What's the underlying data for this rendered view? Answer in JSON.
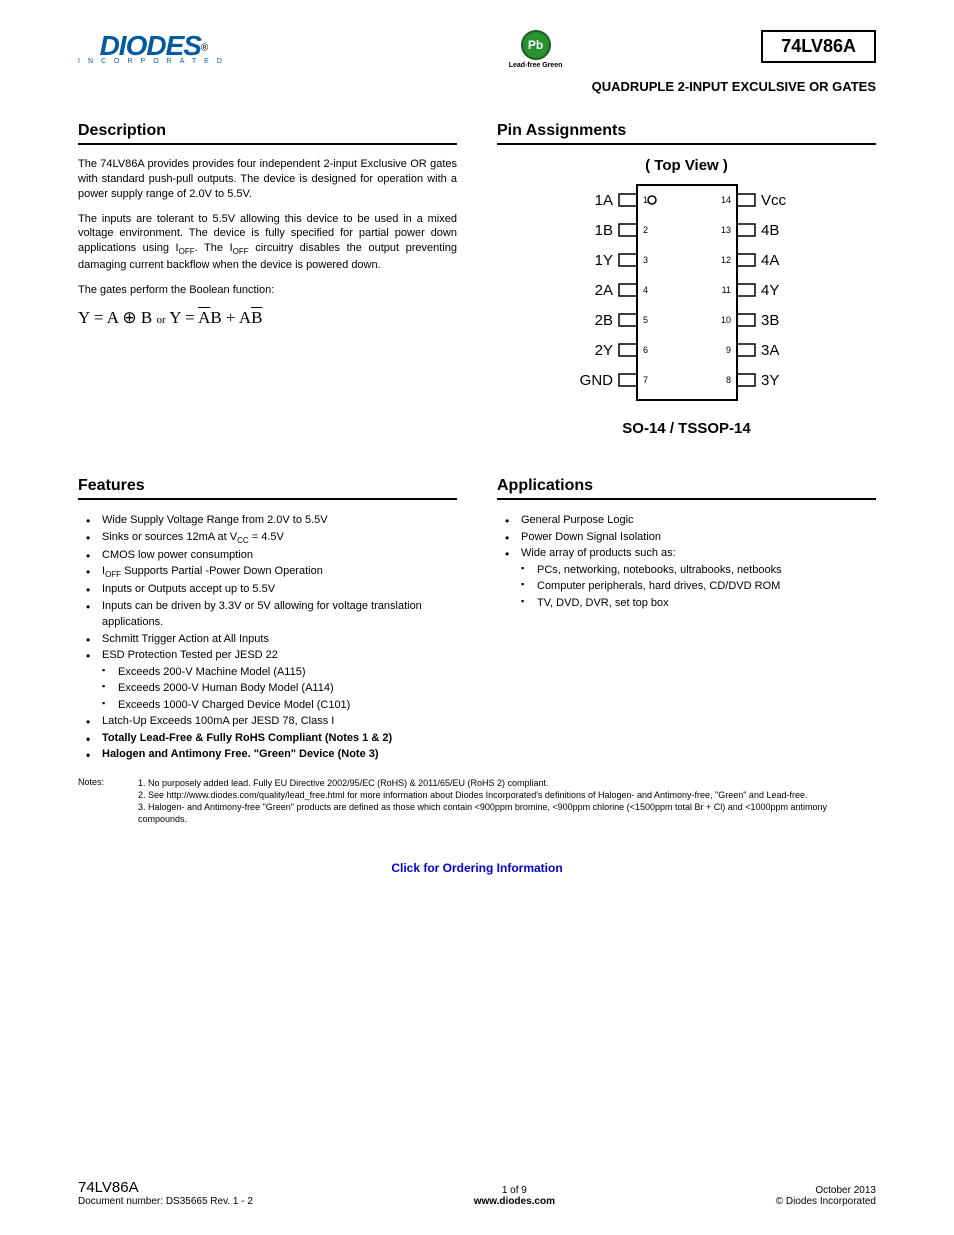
{
  "header": {
    "logo_main": "DIODES",
    "logo_reg": "®",
    "logo_sub": "INCORPORATED",
    "eco_symbol": "Pb",
    "eco_label": "Lead-free Green",
    "part_number": "74LV86A",
    "subtitle": "QUADRUPLE 2-INPUT EXCULSIVE OR GATES"
  },
  "colors": {
    "brand_blue": "#005a9e",
    "green_badge": "#2a9030",
    "link_blue": "#0000dd",
    "text": "#000000",
    "bg": "#ffffff"
  },
  "description": {
    "title": "Description",
    "para1": "The 74LV86A provides provides four independent 2-input  Exclusive OR  gates with standard push-pull outputs.  The device is designed for operation with a power supply range of 2.0V to 5.5V.",
    "para2_a": "The inputs are tolerant to 5.5V allowing this device to be used in a mixed voltage environment.  The device is fully specified for partial power down applications using I",
    "para2_off1": "OFF",
    "para2_b": ".  The I",
    "para2_off2": "OFF",
    "para2_c": " circuitry disables the output preventing damaging current backflow when the device is powered down.",
    "para3": "The gates perform the Boolean function:",
    "formula_y": "Y = A ⊕ B",
    "formula_or": "or",
    "formula_y2a": "Y = ",
    "formula_abar": "A",
    "formula_b": "B + A",
    "formula_bbar": "B"
  },
  "pin": {
    "title": "Pin Assignments",
    "top_view": "( Top View )",
    "caption": "SO-14 / TSSOP-14",
    "left_labels": [
      "1A",
      "1B",
      "1Y",
      "2A",
      "2B",
      "2Y",
      "GND"
    ],
    "left_nums": [
      "1",
      "2",
      "3",
      "4",
      "5",
      "6",
      "7"
    ],
    "right_labels": [
      "Vcc",
      "4B",
      "4A",
      "4Y",
      "3B",
      "3A",
      "3Y"
    ],
    "right_nums": [
      "14",
      "13",
      "12",
      "11",
      "10",
      "9",
      "8"
    ]
  },
  "features": {
    "title": "Features",
    "items": [
      {
        "t": "Wide Supply Voltage Range from 2.0V to 5.5V"
      },
      {
        "t": "Sinks or sources 12mA at V",
        "sub": "CC",
        "t2": " = 4.5V"
      },
      {
        "t": "CMOS low power consumption"
      },
      {
        "t": "I",
        "sub": "OFF",
        "t2": " Supports Partial -Power Down Operation"
      },
      {
        "t": "Inputs or Outputs accept up to 5.5V"
      },
      {
        "t": "Inputs can be driven by 3.3V or 5V allowing for voltage translation applications."
      },
      {
        "t": "Schmitt Trigger Action at All Inputs"
      },
      {
        "t": "ESD Protection Tested per JESD 22",
        "sub_items": [
          "Exceeds 200-V Machine Model (A115)",
          "Exceeds 2000-V Human Body Model (A114)",
          "Exceeds 1000-V Charged Device Model (C101)"
        ]
      },
      {
        "t": "Latch-Up Exceeds 100mA per JESD 78, Class I"
      },
      {
        "t": "Totally Lead-Free & Fully RoHS Compliant (Notes 1 & 2)",
        "bold": true
      },
      {
        "t": "Halogen and Antimony Free. \"Green\" Device (Note 3)",
        "bold": true
      }
    ]
  },
  "applications": {
    "title": "Applications",
    "items": [
      {
        "t": "General Purpose Logic"
      },
      {
        "t": "Power Down Signal Isolation"
      },
      {
        "t": "Wide array of products such as:",
        "sub_items": [
          "PCs, networking, notebooks, ultrabooks, netbooks",
          "Computer peripherals, hard drives, CD/DVD ROM",
          "TV, DVD, DVR, set top box"
        ]
      }
    ]
  },
  "notes": {
    "label": "Notes:",
    "items": [
      "1. No purposely added lead. Fully EU Directive 2002/95/EC (RoHS) & 2011/65/EU (RoHS 2) compliant.",
      "2. See http://www.diodes.com/quality/lead_free.html for more information about Diodes Incorporated's definitions of Halogen- and Antimony-free, \"Green\" and Lead-free.",
      "3. Halogen- and Antimony-free \"Green\" products are defined as those which contain <900ppm bromine, <900ppm chlorine (<1500ppm total Br + Cl) and <1000ppm antimony compounds."
    ]
  },
  "ordering_link": "Click for Ordering Information",
  "footer": {
    "part": "74LV86A",
    "docnum": "Document number: DS35665  Rev. 1 - 2",
    "page": "1 of 9",
    "url": "www.diodes.com",
    "date": "October 2013",
    "copyright": "© Diodes Incorporated"
  }
}
